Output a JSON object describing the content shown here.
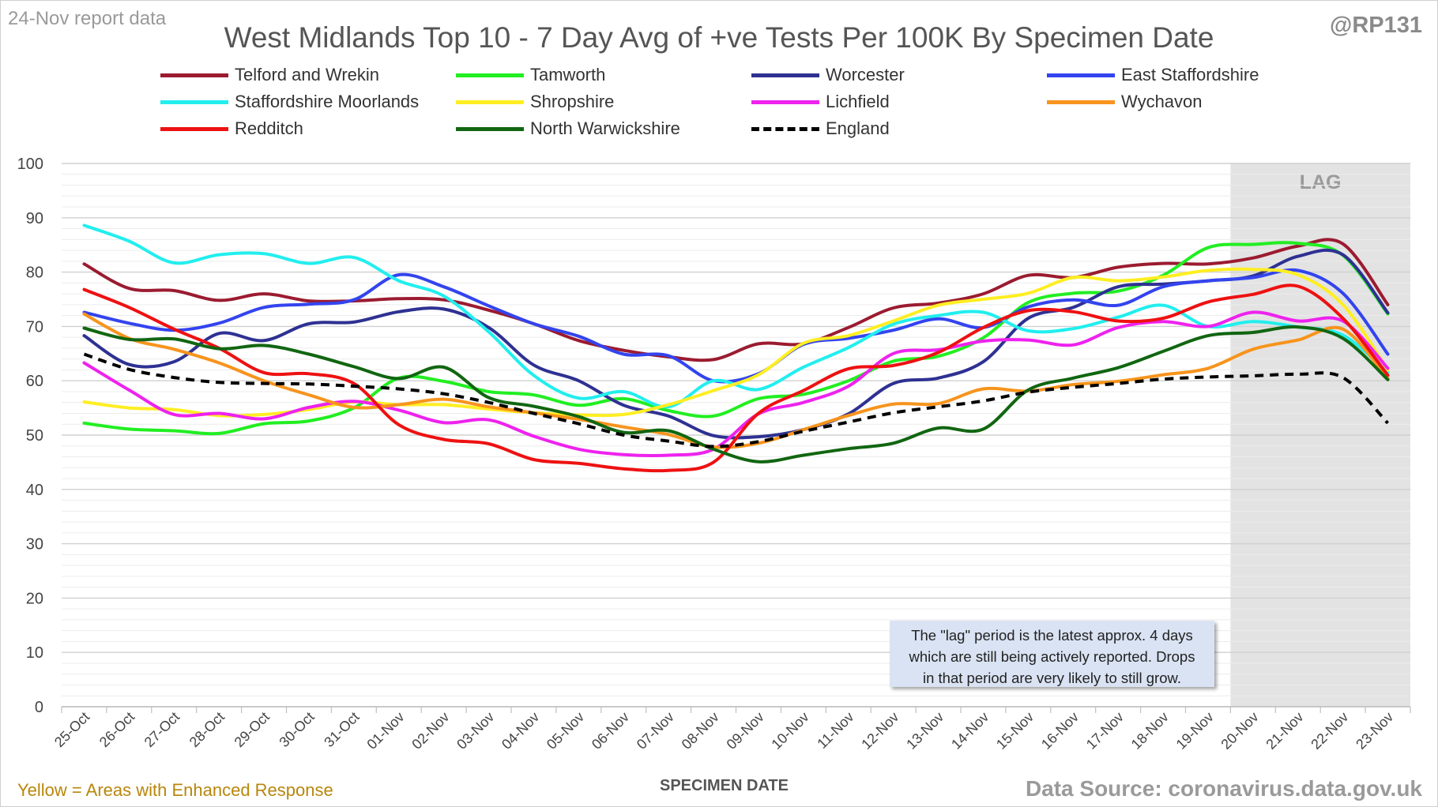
{
  "header": {
    "report_date": "24-Nov report data",
    "handle": "@RP131",
    "title": "West Midlands Top 10 - 7 Day Avg of +ve Tests Per 100K By Specimen Date"
  },
  "footer": {
    "note_left": "Yellow = Areas with Enhanced Response",
    "source": "Data Source: coronavirus.data.gov.uk"
  },
  "note_box": {
    "lines": [
      "The \"lag\" period is the latest approx. 4 days",
      "which are still being actively reported.  Drops",
      "in that period are very likely to still grow."
    ]
  },
  "chart_data": {
    "type": "line",
    "title": "West Midlands Top 10 - 7 Day Avg of +ve Tests Per 100K By Specimen Date",
    "xlabel": "SPECIMEN DATE",
    "ylabel": "",
    "ylim": [
      0,
      100
    ],
    "yticks": [
      0,
      10,
      20,
      30,
      40,
      50,
      60,
      70,
      80,
      90,
      100
    ],
    "grid": true,
    "legend_position": "top",
    "categories": [
      "25-Oct",
      "26-Oct",
      "27-Oct",
      "28-Oct",
      "29-Oct",
      "30-Oct",
      "31-Oct",
      "01-Nov",
      "02-Nov",
      "03-Nov",
      "04-Nov",
      "05-Nov",
      "06-Nov",
      "07-Nov",
      "08-Nov",
      "09-Nov",
      "10-Nov",
      "11-Nov",
      "12-Nov",
      "13-Nov",
      "14-Nov",
      "15-Nov",
      "16-Nov",
      "17-Nov",
      "18-Nov",
      "19-Nov",
      "20-Nov",
      "21-Nov",
      "22-Nov",
      "23-Nov"
    ],
    "lag_region": {
      "label": "LAG",
      "start": "20-Nov",
      "end": "23-Nov"
    },
    "series": [
      {
        "name": "Telford and Wrekin",
        "color": "#9b1b30",
        "dashed": false,
        "values": [
          81.5,
          77,
          76.6,
          74.8,
          76,
          74.7,
          74.7,
          75.1,
          74.9,
          73,
          70.5,
          67.4,
          65.6,
          64.4,
          63.9,
          66.8,
          66.8,
          69.8,
          73.4,
          74.3,
          76,
          79.4,
          79,
          80.9,
          81.6,
          81.5,
          82.6,
          84.8,
          85.2,
          74
        ]
      },
      {
        "name": "Tamworth",
        "color": "#22ee22",
        "dashed": false,
        "values": [
          52.2,
          51.1,
          50.8,
          50.3,
          52.1,
          52.6,
          55,
          60.5,
          59.9,
          58,
          57.4,
          55.5,
          56.7,
          54.5,
          53.5,
          56.7,
          57.5,
          60,
          63.6,
          64.5,
          67.9,
          74.4,
          76.1,
          76.5,
          79.4,
          84.5,
          85.1,
          85.3,
          83.1,
          72.3
        ]
      },
      {
        "name": "Worcester",
        "color": "#2e3192",
        "dashed": false,
        "values": [
          68.3,
          63,
          63.5,
          68.7,
          67.4,
          70.5,
          70.8,
          72.7,
          73.2,
          69.8,
          62.9,
          60,
          55.5,
          53.5,
          49.9,
          49.7,
          51,
          53.9,
          59.5,
          60.5,
          63.5,
          71.5,
          73.5,
          77.3,
          77.8,
          78.4,
          79.3,
          82.9,
          83.2,
          72.5
        ]
      },
      {
        "name": "East Staffordshire",
        "color": "#3344ee",
        "dashed": false,
        "values": [
          72.6,
          70.6,
          69.3,
          70.6,
          73.5,
          74.1,
          74.9,
          79.5,
          77.3,
          73.8,
          70.5,
          68.2,
          64.9,
          64.6,
          60,
          61.3,
          66.7,
          67.8,
          69.3,
          71.4,
          69.8,
          73.6,
          74.9,
          73.9,
          77.3,
          78.4,
          79,
          80.3,
          76.1,
          64.9
        ]
      },
      {
        "name": "Staffordshire Moorlands",
        "color": "#22eeee",
        "dashed": false,
        "values": [
          88.6,
          85.7,
          81.7,
          83.2,
          83.4,
          81.6,
          82.7,
          78.4,
          75.6,
          69,
          61,
          56.8,
          58,
          55.2,
          60,
          58.4,
          62.5,
          66.1,
          70.4,
          72,
          72.6,
          69.2,
          69.6,
          71.7,
          73.9,
          70,
          70.9,
          69.9,
          68.4,
          61.5
        ]
      },
      {
        "name": "Shropshire",
        "color": "#ffee22",
        "dashed": false,
        "values": [
          56.1,
          55,
          54.7,
          53.6,
          53.8,
          54.7,
          56.1,
          55.6,
          55.6,
          54.8,
          54.1,
          53.7,
          53.8,
          55.6,
          58.2,
          61.1,
          66.9,
          68.3,
          71,
          73.9,
          75,
          76.1,
          79,
          78.4,
          79.1,
          80.3,
          80.5,
          79.5,
          74,
          62
        ]
      },
      {
        "name": "Lichfield",
        "color": "#ee22ee",
        "dashed": false,
        "values": [
          63.3,
          58.3,
          53.8,
          54,
          53,
          55.1,
          56.2,
          54.6,
          52.3,
          52.8,
          49.8,
          47.4,
          46.4,
          46.3,
          47.4,
          53.9,
          56,
          59,
          65,
          65.7,
          67.3,
          67.5,
          66.6,
          69.8,
          70.9,
          70,
          72.6,
          71,
          71,
          62.3
        ]
      },
      {
        "name": "Wychavon",
        "color": "#f7941d",
        "dashed": false,
        "values": [
          72.3,
          67.8,
          65.8,
          63.3,
          60,
          57.4,
          55.1,
          55.6,
          56.6,
          55.2,
          54.1,
          52.9,
          51.5,
          50.1,
          47.8,
          48.5,
          51,
          53.6,
          55.7,
          55.8,
          58.5,
          58.1,
          59.3,
          59.9,
          61.1,
          62.3,
          65.8,
          67.5,
          69.5,
          60.4
        ]
      },
      {
        "name": "Redditch",
        "color": "#ee1111",
        "dashed": false,
        "values": [
          76.8,
          73.5,
          69.5,
          66,
          61.5,
          61.3,
          59.5,
          51.9,
          49.2,
          48.4,
          45.5,
          44.8,
          43.8,
          43.5,
          45,
          54,
          58.2,
          62.2,
          62.8,
          65.2,
          69.8,
          72.9,
          72.7,
          71,
          71.5,
          74.5,
          75.9,
          77.4,
          71.5,
          61
        ]
      },
      {
        "name": "North Warwickshire",
        "color": "#116611",
        "dashed": false,
        "values": [
          69.7,
          67.6,
          67.7,
          65.9,
          66.5,
          64.9,
          62.6,
          60.4,
          62.5,
          56.9,
          55.3,
          53.4,
          50.5,
          50.8,
          47.4,
          45.1,
          46.3,
          47.5,
          48.5,
          51.3,
          51.1,
          58.3,
          60.5,
          62.4,
          65.4,
          68.3,
          68.9,
          69.9,
          67.8,
          60.2
        ]
      },
      {
        "name": "England",
        "color": "#000000",
        "dashed": true,
        "values": [
          64.9,
          62.1,
          60.6,
          59.7,
          59.5,
          59.4,
          59,
          58.5,
          57.6,
          56,
          54,
          52.1,
          50,
          48.9,
          47.9,
          48.8,
          50.7,
          52.4,
          54.1,
          55.2,
          56.3,
          57.9,
          58.8,
          59.5,
          60.3,
          60.7,
          60.9,
          61.2,
          60.6,
          52.2
        ]
      }
    ]
  }
}
